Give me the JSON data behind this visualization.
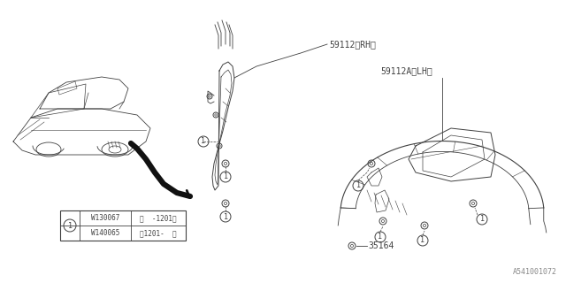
{
  "bg_color": "#ffffff",
  "diagram_id": "A541001072",
  "part_labels": {
    "rh": "59112〈RH〉",
    "lh": "59112A〈LH〉"
  },
  "part_number_label": "35164",
  "bom_table": {
    "rows": [
      {
        "part": "W130067",
        "note": "〈  -1201〉"
      },
      {
        "part": "W140065",
        "note": "〈1201-  〉"
      }
    ]
  },
  "line_color": "#404040",
  "text_color": "#404040",
  "font_size_small": 6,
  "font_size_label": 7,
  "font_size_diagram_id": 6
}
